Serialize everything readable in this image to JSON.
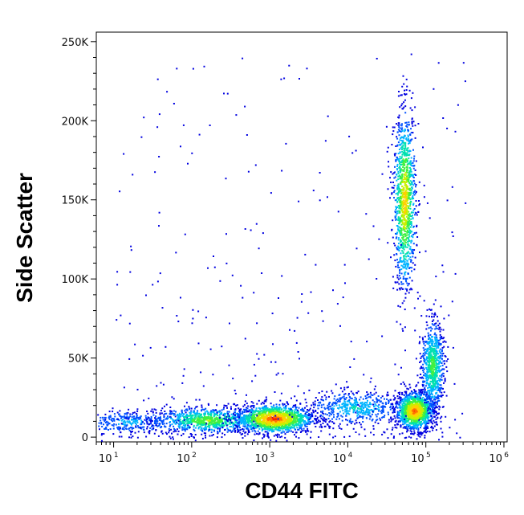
{
  "chart_data": {
    "type": "scatter",
    "title": "",
    "xlabel": "CD44 FITC",
    "ylabel": "Side Scatter",
    "x_scale": "log",
    "xlim": [
      6,
      1100000
    ],
    "ylim": [
      -3000,
      256000
    ],
    "x_ticks": [
      {
        "value": 10,
        "base": "10",
        "exp": "1"
      },
      {
        "value": 100,
        "base": "10",
        "exp": "2"
      },
      {
        "value": 1000,
        "base": "10",
        "exp": "3"
      },
      {
        "value": 10000,
        "base": "10",
        "exp": "4"
      },
      {
        "value": 100000,
        "base": "10",
        "exp": "5"
      },
      {
        "value": 1000000,
        "base": "10",
        "exp": "6"
      }
    ],
    "y_ticks": [
      {
        "value": 0,
        "label": "0"
      },
      {
        "value": 50000,
        "label": "50K"
      },
      {
        "value": 100000,
        "label": "100K"
      },
      {
        "value": 150000,
        "label": "150K"
      },
      {
        "value": 200000,
        "label": "200K"
      },
      {
        "value": 250000,
        "label": "250K"
      }
    ],
    "grid": false,
    "density_colors": [
      "#0000e0",
      "#0050ff",
      "#00b4ff",
      "#00e0b0",
      "#40f040",
      "#c8f000",
      "#ffd000",
      "#ff7000",
      "#ff1a00"
    ],
    "populations": [
      {
        "x_log_center": 1.2,
        "x_log_spread": 0.35,
        "y_center": 10000,
        "y_spread": 3500,
        "density": 0.25
      },
      {
        "x_log_center": 2.2,
        "x_log_spread": 0.35,
        "y_center": 11000,
        "y_spread": 4000,
        "density": 0.6
      },
      {
        "x_log_center": 3.05,
        "x_log_spread": 0.25,
        "y_center": 12000,
        "y_spread": 4500,
        "density": 1.0
      },
      {
        "x_log_center": 4.1,
        "x_log_spread": 0.3,
        "y_center": 19000,
        "y_spread": 5000,
        "density": 0.35
      },
      {
        "x_log_center": 4.85,
        "x_log_spread": 0.12,
        "y_center": 17000,
        "y_spread": 6000,
        "density": 0.95
      },
      {
        "x_log_center": 4.72,
        "x_log_spread": 0.07,
        "y_center": 150000,
        "y_spread": 28000,
        "density": 0.8
      },
      {
        "x_log_center": 5.08,
        "x_log_spread": 0.07,
        "y_center": 45000,
        "y_spread": 14000,
        "density": 0.55
      }
    ]
  }
}
